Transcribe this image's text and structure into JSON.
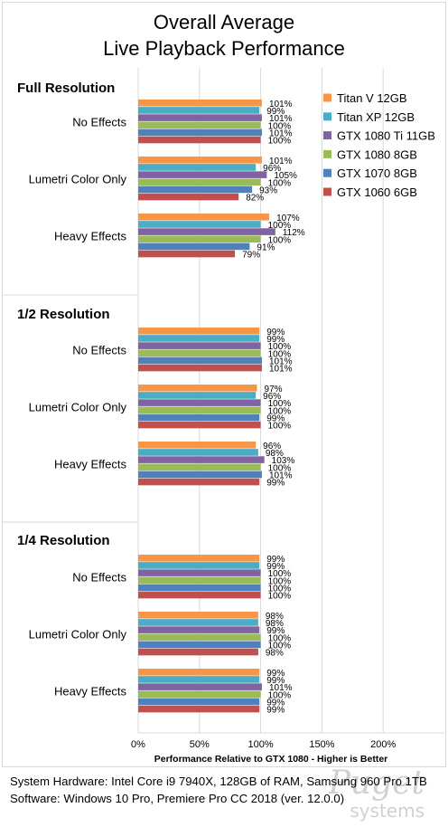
{
  "chart_data": {
    "type": "bar",
    "orientation": "horizontal",
    "title": "Overall Average\nLive Playback Performance",
    "xlabel": "Performance Relative to GTX 1080 - Higher is Better",
    "xlim": [
      0,
      2.5
    ],
    "xticks": [
      0,
      0.5,
      1,
      1.5,
      2
    ],
    "xtick_labels": [
      "0%",
      "50%",
      "100%",
      "150%",
      "200%"
    ],
    "grid": true,
    "legend_position": "top-right",
    "series": [
      {
        "name": "Titan V 12GB",
        "color": "#f79646"
      },
      {
        "name": "Titan XP 12GB",
        "color": "#4bacc6"
      },
      {
        "name": "GTX 1080 Ti 11GB",
        "color": "#8064a2"
      },
      {
        "name": "GTX 1080 8GB",
        "color": "#9bbb59"
      },
      {
        "name": "GTX 1070 8GB",
        "color": "#4f81bd"
      },
      {
        "name": "GTX 1060 6GB",
        "color": "#c0504d"
      }
    ],
    "groups": [
      {
        "name": "Full Resolution",
        "categories": [
          {
            "name": "No Effects",
            "values": [
              1.01,
              0.99,
              1.01,
              1.0,
              1.01,
              1.0
            ],
            "labels": [
              "101%",
              "99%",
              "101%",
              "100%",
              "101%",
              "100%"
            ]
          },
          {
            "name": "Lumetri Color Only",
            "values": [
              1.01,
              0.96,
              1.05,
              1.0,
              0.93,
              0.82
            ],
            "labels": [
              "101%",
              "96%",
              "105%",
              "100%",
              "93%",
              "82%"
            ]
          },
          {
            "name": "Heavy Effects",
            "values": [
              1.07,
              1.0,
              1.12,
              1.0,
              0.91,
              0.79
            ],
            "labels": [
              "107%",
              "100%",
              "112%",
              "100%",
              "91%",
              "79%"
            ]
          }
        ]
      },
      {
        "name": "1/2 Resolution",
        "categories": [
          {
            "name": "No Effects",
            "values": [
              0.99,
              0.99,
              1.0,
              1.0,
              1.01,
              1.01
            ],
            "labels": [
              "99%",
              "99%",
              "100%",
              "100%",
              "101%",
              "101%"
            ]
          },
          {
            "name": "Lumetri Color Only",
            "values": [
              0.97,
              0.96,
              1.0,
              1.0,
              0.99,
              1.0
            ],
            "labels": [
              "97%",
              "96%",
              "100%",
              "100%",
              "99%",
              "100%"
            ]
          },
          {
            "name": "Heavy Effects",
            "values": [
              0.96,
              0.98,
              1.03,
              1.0,
              1.01,
              0.99
            ],
            "labels": [
              "96%",
              "98%",
              "103%",
              "100%",
              "101%",
              "99%"
            ]
          }
        ]
      },
      {
        "name": "1/4 Resolution",
        "categories": [
          {
            "name": "No Effects",
            "values": [
              0.99,
              0.99,
              1.0,
              1.0,
              1.0,
              1.0
            ],
            "labels": [
              "99%",
              "99%",
              "100%",
              "100%",
              "100%",
              "100%"
            ]
          },
          {
            "name": "Lumetri Color Only",
            "values": [
              0.98,
              0.98,
              0.99,
              1.0,
              1.0,
              0.98
            ],
            "labels": [
              "98%",
              "98%",
              "99%",
              "100%",
              "100%",
              "98%"
            ]
          },
          {
            "name": "Heavy Effects",
            "values": [
              0.99,
              0.99,
              1.01,
              1.0,
              0.99,
              0.99
            ],
            "labels": [
              "99%",
              "99%",
              "101%",
              "100%",
              "99%",
              "99%"
            ]
          }
        ]
      }
    ]
  },
  "footer": {
    "line1": "System Hardware: Intel Core i9 7940X,  128GB of RAM, Samsung 960 Pro 1TB",
    "line2": "Software: Windows 10 Pro, Premiere Pro CC 2018  (ver. 12.0.0)"
  },
  "watermark": {
    "logo": "Puget",
    "subtitle": "systems"
  }
}
